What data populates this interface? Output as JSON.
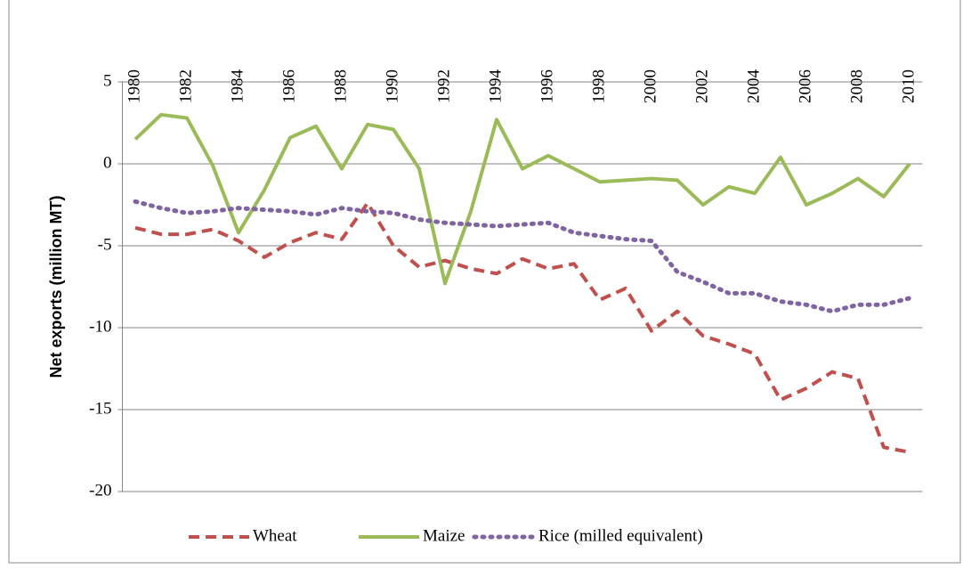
{
  "chart_data": {
    "type": "line",
    "y_label": "Net exports (million MT)",
    "x": [
      1980,
      1981,
      1982,
      1983,
      1984,
      1985,
      1986,
      1987,
      1988,
      1989,
      1990,
      1991,
      1992,
      1993,
      1994,
      1995,
      1996,
      1997,
      1998,
      1999,
      2000,
      2001,
      2002,
      2003,
      2004,
      2005,
      2006,
      2007,
      2008,
      2009,
      2010
    ],
    "xlim": [
      1979.5,
      2010.5
    ],
    "xticks": [
      1980,
      1982,
      1984,
      1986,
      1988,
      1990,
      1992,
      1994,
      1996,
      1998,
      2000,
      2002,
      2004,
      2006,
      2008,
      2010
    ],
    "ylim": [
      -20,
      5
    ],
    "yticks": [
      -20,
      -15,
      -10,
      -5,
      0,
      5
    ],
    "grid": true,
    "legend": "bottom",
    "series": [
      {
        "name": "Wheat",
        "color": "#c0504d",
        "dash": "dashed",
        "values": [
          -3.9,
          -4.3,
          -4.3,
          -4.0,
          -4.7,
          -5.7,
          -4.8,
          -4.2,
          -4.6,
          -2.4,
          -5.0,
          -6.3,
          -5.9,
          -6.4,
          -6.7,
          -5.8,
          -6.4,
          -6.1,
          -8.3,
          -7.6,
          -10.2,
          -9.0,
          -10.5,
          -11.0,
          -11.6,
          -14.4,
          -13.7,
          -12.7,
          -13.1,
          -17.3,
          -17.6
        ]
      },
      {
        "name": "Maize",
        "color": "#9bbb59",
        "dash": "solid",
        "values": [
          1.5,
          3.0,
          2.8,
          -0.1,
          -4.2,
          -1.6,
          1.6,
          2.3,
          -0.3,
          2.4,
          2.1,
          -0.3,
          -7.3,
          -2.9,
          2.7,
          -0.3,
          0.5,
          -0.3,
          -1.1,
          -1.0,
          -0.9,
          -1.0,
          -2.5,
          -1.4,
          -1.8,
          0.4,
          -2.5,
          -1.8,
          -0.9,
          -2.0,
          0
        ]
      },
      {
        "name": "Rice (milled equivalent)",
        "color": "#8064a2",
        "dash": "dotted",
        "values": [
          -2.3,
          -2.7,
          -3.0,
          -2.9,
          -2.7,
          -2.8,
          -2.9,
          -3.1,
          -2.7,
          -2.9,
          -3.0,
          -3.4,
          -3.6,
          -3.7,
          -3.8,
          -3.7,
          -3.6,
          -4.2,
          -4.4,
          -4.6,
          -4.7,
          -6.6,
          -7.2,
          -7.9,
          -7.9,
          -8.4,
          -8.6,
          -9.0,
          -8.6,
          -8.6,
          -8.2
        ]
      }
    ]
  }
}
